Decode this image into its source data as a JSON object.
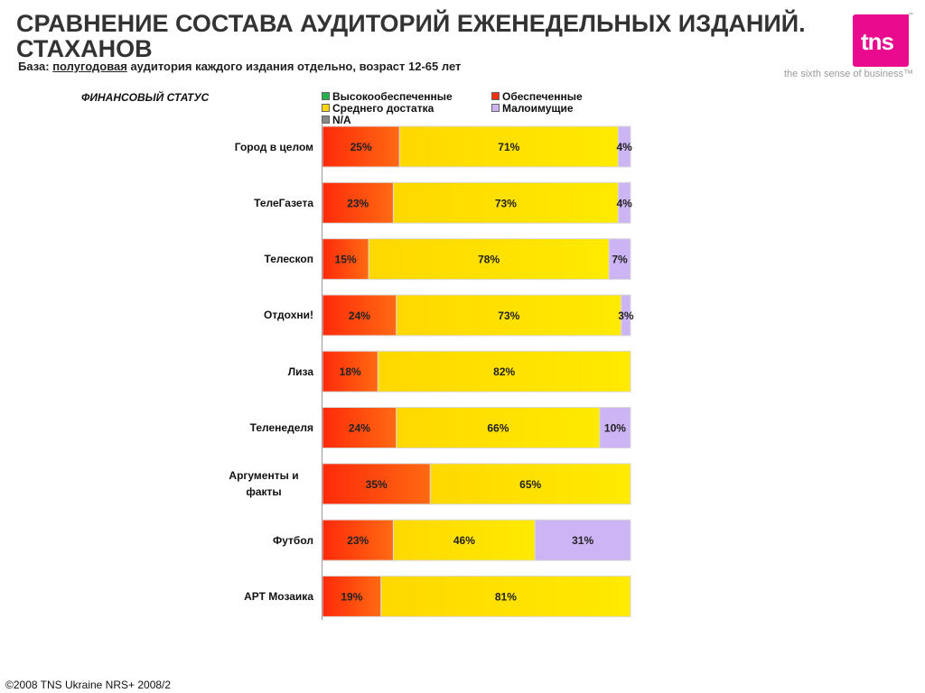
{
  "header": {
    "title": "СРАВНЕНИЕ СОСТАВА АУДИТОРИЙ ЕЖЕНЕДЕЛЬНЫХ ИЗДАНИЙ. СТАХАНОВ",
    "subtitle_prefix": "База: ",
    "subtitle_underlined": "полугодовая",
    "subtitle_suffix": " аудитория каждого издания отдельно, возраст 12-65 лет"
  },
  "brand": {
    "logo_text": "tns",
    "trademark": "™",
    "tagline": "the sixth sense of business™",
    "color": "#ea0a8e"
  },
  "section_label": "ФИНАНСОВЫЙ СТАТУС",
  "footer": "©2008 TNS Ukraine  NRS+ 2008/2",
  "chart_data": {
    "type": "bar",
    "orientation": "horizontal",
    "stacked": "percent",
    "xlim": [
      0,
      100
    ],
    "legend_position": "top",
    "categories": [
      "Город в целом",
      "ТелеГазета",
      "Телескоп",
      "Отдохни!",
      "Лиза",
      "Теленеделя",
      "Аргументы и факты",
      "Футбол",
      "АРТ Мозаика"
    ],
    "series": [
      {
        "name": "Высокообеспеченные",
        "color": "#22b14c",
        "values": [
          0,
          0,
          0,
          0,
          0,
          0,
          0,
          0,
          0
        ]
      },
      {
        "name": "Обеспеченные",
        "color": "#f03010",
        "values": [
          25,
          23,
          15,
          24,
          18,
          24,
          35,
          23,
          19
        ]
      },
      {
        "name": "Среднего достатка",
        "color": "#ffd700",
        "values": [
          71,
          73,
          78,
          73,
          82,
          66,
          65,
          46,
          81
        ]
      },
      {
        "name": "Малоимущие",
        "color": "#cdb5f5",
        "values": [
          4,
          4,
          7,
          3,
          0,
          10,
          0,
          31,
          0
        ]
      },
      {
        "name": "N/A",
        "color": "#888888",
        "values": [
          0,
          0,
          0,
          0,
          0,
          0,
          0,
          0,
          0
        ]
      }
    ],
    "data_labels": [
      [
        "25%",
        "71%",
        "4%"
      ],
      [
        "23%",
        "73%",
        "4%"
      ],
      [
        "15%",
        "78%",
        "7%"
      ],
      [
        "24%",
        "73%",
        "3%"
      ],
      [
        "18%",
        "82%"
      ],
      [
        "24%",
        "66%",
        "10%"
      ],
      [
        "35%",
        "65%"
      ],
      [
        "23%",
        "46%",
        "31%"
      ],
      [
        "19%",
        "81%"
      ]
    ]
  }
}
